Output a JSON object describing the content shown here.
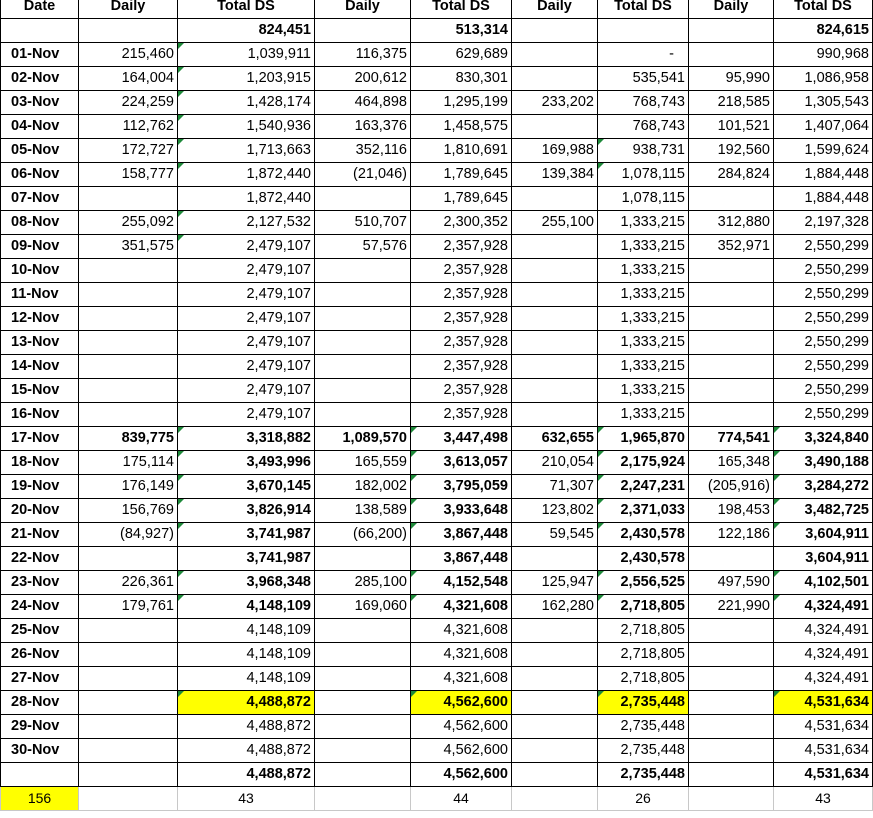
{
  "header": [
    "Date",
    "Daily",
    "Total DS",
    "Daily",
    "Total DS",
    "Daily",
    "Total DS",
    "Daily",
    "Total DS"
  ],
  "opening": [
    "",
    "",
    "824,451",
    "",
    "513,314",
    "",
    "",
    "",
    "824,615"
  ],
  "rows": [
    [
      "01-Nov",
      "215,460",
      "1,039,911",
      "116,375",
      "629,689",
      "",
      "-",
      "",
      "990,968"
    ],
    [
      "02-Nov",
      "164,004",
      "1,203,915",
      "200,612",
      "830,301",
      "",
      "535,541",
      "95,990",
      "1,086,958"
    ],
    [
      "03-Nov",
      "224,259",
      "1,428,174",
      "464,898",
      "1,295,199",
      "233,202",
      "768,743",
      "218,585",
      "1,305,543"
    ],
    [
      "04-Nov",
      "112,762",
      "1,540,936",
      "163,376",
      "1,458,575",
      "",
      "768,743",
      "101,521",
      "1,407,064"
    ],
    [
      "05-Nov",
      "172,727",
      "1,713,663",
      "352,116",
      "1,810,691",
      "169,988",
      "938,731",
      "192,560",
      "1,599,624"
    ],
    [
      "06-Nov",
      "158,777",
      "1,872,440",
      "(21,046)",
      "1,789,645",
      "139,384",
      "1,078,115",
      "284,824",
      "1,884,448"
    ],
    [
      "07-Nov",
      "",
      "1,872,440",
      "",
      "1,789,645",
      "",
      "1,078,115",
      "",
      "1,884,448"
    ],
    [
      "08-Nov",
      "255,092",
      "2,127,532",
      "510,707",
      "2,300,352",
      "255,100",
      "1,333,215",
      "312,880",
      "2,197,328"
    ],
    [
      "09-Nov",
      "351,575",
      "2,479,107",
      "57,576",
      "2,357,928",
      "",
      "1,333,215",
      "352,971",
      "2,550,299"
    ],
    [
      "10-Nov",
      "",
      "2,479,107",
      "",
      "2,357,928",
      "",
      "1,333,215",
      "",
      "2,550,299"
    ],
    [
      "11-Nov",
      "",
      "2,479,107",
      "",
      "2,357,928",
      "",
      "1,333,215",
      "",
      "2,550,299"
    ],
    [
      "12-Nov",
      "",
      "2,479,107",
      "",
      "2,357,928",
      "",
      "1,333,215",
      "",
      "2,550,299"
    ],
    [
      "13-Nov",
      "",
      "2,479,107",
      "",
      "2,357,928",
      "",
      "1,333,215",
      "",
      "2,550,299"
    ],
    [
      "14-Nov",
      "",
      "2,479,107",
      "",
      "2,357,928",
      "",
      "1,333,215",
      "",
      "2,550,299"
    ],
    [
      "15-Nov",
      "",
      "2,479,107",
      "",
      "2,357,928",
      "",
      "1,333,215",
      "",
      "2,550,299"
    ],
    [
      "16-Nov",
      "",
      "2,479,107",
      "",
      "2,357,928",
      "",
      "1,333,215",
      "",
      "2,550,299"
    ],
    [
      "17-Nov",
      "839,775",
      "3,318,882",
      "1,089,570",
      "3,447,498",
      "632,655",
      "1,965,870",
      "774,541",
      "3,324,840"
    ],
    [
      "18-Nov",
      "175,114",
      "3,493,996",
      "165,559",
      "3,613,057",
      "210,054",
      "2,175,924",
      "165,348",
      "3,490,188"
    ],
    [
      "19-Nov",
      "176,149",
      "3,670,145",
      "182,002",
      "3,795,059",
      "71,307",
      "2,247,231",
      "(205,916)",
      "3,284,272"
    ],
    [
      "20-Nov",
      "156,769",
      "3,826,914",
      "138,589",
      "3,933,648",
      "123,802",
      "2,371,033",
      "198,453",
      "3,482,725"
    ],
    [
      "21-Nov",
      "(84,927)",
      "3,741,987",
      "(66,200)",
      "3,867,448",
      "59,545",
      "2,430,578",
      "122,186",
      "3,604,911"
    ],
    [
      "22-Nov",
      "",
      "3,741,987",
      "",
      "3,867,448",
      "",
      "2,430,578",
      "",
      "3,604,911"
    ],
    [
      "23-Nov",
      "226,361",
      "3,968,348",
      "285,100",
      "4,152,548",
      "125,947",
      "2,556,525",
      "497,590",
      "4,102,501"
    ],
    [
      "24-Nov",
      "179,761",
      "4,148,109",
      "169,060",
      "4,321,608",
      "162,280",
      "2,718,805",
      "221,990",
      "4,324,491"
    ],
    [
      "25-Nov",
      "",
      "4,148,109",
      "",
      "4,321,608",
      "",
      "2,718,805",
      "",
      "4,324,491"
    ],
    [
      "26-Nov",
      "",
      "4,148,109",
      "",
      "4,321,608",
      "",
      "2,718,805",
      "",
      "4,324,491"
    ],
    [
      "27-Nov",
      "",
      "4,148,109",
      "",
      "4,321,608",
      "",
      "2,718,805",
      "",
      "4,324,491"
    ],
    [
      "28-Nov",
      "",
      "4,488,872",
      "",
      "4,562,600",
      "",
      "2,735,448",
      "",
      "4,531,634"
    ],
    [
      "29-Nov",
      "",
      "4,488,872",
      "",
      "4,562,600",
      "",
      "2,735,448",
      "",
      "4,531,634"
    ],
    [
      "30-Nov",
      "",
      "4,488,872",
      "",
      "4,562,600",
      "",
      "2,735,448",
      "",
      "4,531,634"
    ]
  ],
  "closing": [
    "",
    "",
    "4,488,872",
    "",
    "4,562,600",
    "",
    "2,735,448",
    "",
    "4,531,634"
  ],
  "counts": [
    "156",
    "",
    "43",
    "",
    "44",
    "",
    "26",
    "",
    "43"
  ],
  "highlight_color": "#ffff00",
  "marker_color": "#1e8a3a"
}
